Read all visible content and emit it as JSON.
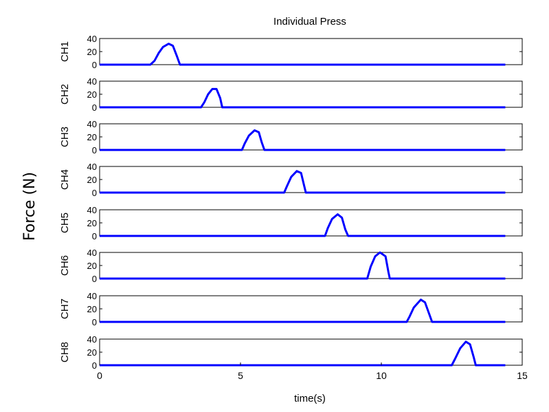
{
  "chart_data": {
    "type": "line",
    "title": "Individual Press",
    "xlabel": "time(s)",
    "ylabel": "Force (N)",
    "xlim": [
      0,
      15
    ],
    "ylim": [
      0,
      40
    ],
    "x_ticks": [
      "0",
      "5",
      "10",
      "15"
    ],
    "y_ticks": [
      "0",
      "20",
      "40"
    ],
    "series_color": "#0000ff",
    "grid": false,
    "panels": [
      {
        "name": "CH1",
        "points": [
          [
            0,
            0
          ],
          [
            1.8,
            0
          ],
          [
            1.95,
            6
          ],
          [
            2.1,
            18
          ],
          [
            2.25,
            27
          ],
          [
            2.45,
            32
          ],
          [
            2.6,
            29
          ],
          [
            2.75,
            12
          ],
          [
            2.85,
            0
          ],
          [
            14.4,
            0
          ]
        ]
      },
      {
        "name": "CH2",
        "points": [
          [
            0,
            0
          ],
          [
            3.6,
            0
          ],
          [
            3.72,
            8
          ],
          [
            3.85,
            20
          ],
          [
            4.0,
            28
          ],
          [
            4.15,
            28
          ],
          [
            4.28,
            14
          ],
          [
            4.35,
            0
          ],
          [
            14.4,
            0
          ]
        ]
      },
      {
        "name": "CH3",
        "points": [
          [
            0,
            0
          ],
          [
            5.05,
            0
          ],
          [
            5.15,
            10
          ],
          [
            5.3,
            22
          ],
          [
            5.5,
            30
          ],
          [
            5.65,
            27
          ],
          [
            5.75,
            12
          ],
          [
            5.85,
            0
          ],
          [
            14.4,
            0
          ]
        ]
      },
      {
        "name": "CH4",
        "points": [
          [
            0,
            0
          ],
          [
            6.55,
            0
          ],
          [
            6.65,
            10
          ],
          [
            6.8,
            24
          ],
          [
            7.0,
            33
          ],
          [
            7.15,
            30
          ],
          [
            7.25,
            12
          ],
          [
            7.32,
            0
          ],
          [
            14.4,
            0
          ]
        ]
      },
      {
        "name": "CH5",
        "points": [
          [
            0,
            0
          ],
          [
            8.0,
            0
          ],
          [
            8.1,
            12
          ],
          [
            8.25,
            26
          ],
          [
            8.45,
            33
          ],
          [
            8.6,
            28
          ],
          [
            8.72,
            10
          ],
          [
            8.82,
            0
          ],
          [
            14.4,
            0
          ]
        ]
      },
      {
        "name": "CH6",
        "points": [
          [
            0,
            0
          ],
          [
            9.5,
            0
          ],
          [
            9.62,
            18
          ],
          [
            9.78,
            34
          ],
          [
            9.95,
            40
          ],
          [
            10.15,
            34
          ],
          [
            10.25,
            10
          ],
          [
            10.3,
            0
          ],
          [
            14.4,
            0
          ]
        ]
      },
      {
        "name": "CH7",
        "points": [
          [
            0,
            0
          ],
          [
            10.9,
            0
          ],
          [
            11.0,
            8
          ],
          [
            11.15,
            22
          ],
          [
            11.4,
            34
          ],
          [
            11.55,
            30
          ],
          [
            11.7,
            12
          ],
          [
            11.8,
            0
          ],
          [
            14.4,
            0
          ]
        ]
      },
      {
        "name": "CH8",
        "points": [
          [
            0,
            0
          ],
          [
            12.5,
            0
          ],
          [
            12.62,
            10
          ],
          [
            12.8,
            26
          ],
          [
            13.0,
            36
          ],
          [
            13.15,
            32
          ],
          [
            13.28,
            12
          ],
          [
            13.35,
            0
          ],
          [
            14.4,
            0
          ]
        ]
      }
    ]
  }
}
